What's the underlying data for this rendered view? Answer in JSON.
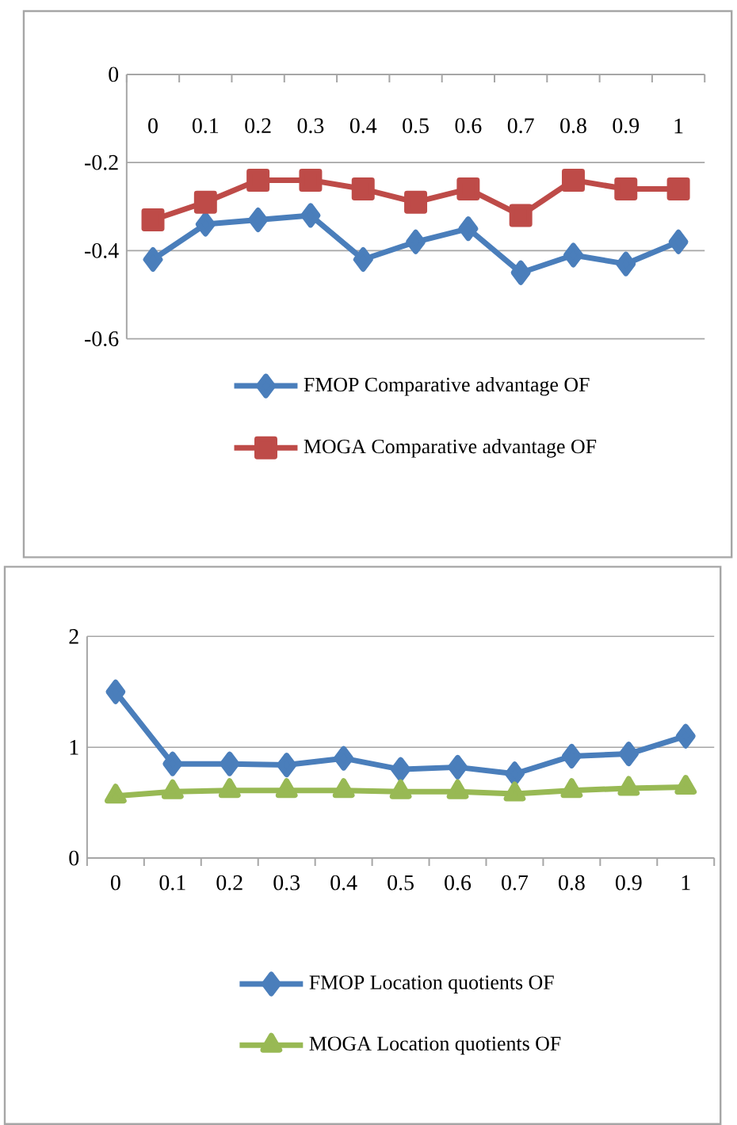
{
  "chart_data": [
    {
      "type": "line",
      "categories": [
        "0",
        "0.1",
        "0.2",
        "0.3",
        "0.4",
        "0.5",
        "0.6",
        "0.7",
        "0.8",
        "0.9",
        "1"
      ],
      "ylim": [
        -0.6,
        0
      ],
      "yticks": [
        -0.6,
        -0.4,
        -0.2,
        0
      ],
      "grid": "y",
      "legend": "bottom",
      "line_style": "solid",
      "series": [
        {
          "name": "FMOP Comparative advantage OF",
          "color": "#4a7ebb",
          "marker": "diamond",
          "values": [
            -0.42,
            -0.34,
            -0.33,
            -0.32,
            -0.42,
            -0.38,
            -0.35,
            -0.45,
            -0.41,
            -0.43,
            -0.38
          ]
        },
        {
          "name": "MOGA Comparative advantage OF",
          "color": "#be4b48",
          "marker": "square",
          "values": [
            -0.33,
            -0.29,
            -0.24,
            -0.24,
            -0.26,
            -0.29,
            -0.26,
            -0.32,
            -0.24,
            -0.26,
            -0.26
          ]
        }
      ]
    },
    {
      "type": "line",
      "categories": [
        "0",
        "0.1",
        "0.2",
        "0.3",
        "0.4",
        "0.5",
        "0.6",
        "0.7",
        "0.8",
        "0.9",
        "1"
      ],
      "ylim": [
        0,
        2
      ],
      "yticks": [
        0,
        1,
        2
      ],
      "grid": "y",
      "legend": "bottom",
      "line_style": "solid",
      "series": [
        {
          "name": "FMOP Location quotients OF",
          "color": "#4a7ebb",
          "marker": "diamond",
          "values": [
            1.5,
            0.85,
            0.85,
            0.84,
            0.9,
            0.8,
            0.82,
            0.76,
            0.92,
            0.94,
            1.1
          ]
        },
        {
          "name": "MOGA Location quotients OF",
          "color": "#98b954",
          "marker": "triangle",
          "values": [
            0.56,
            0.6,
            0.61,
            0.61,
            0.61,
            0.6,
            0.6,
            0.58,
            0.61,
            0.63,
            0.64
          ]
        }
      ]
    }
  ]
}
